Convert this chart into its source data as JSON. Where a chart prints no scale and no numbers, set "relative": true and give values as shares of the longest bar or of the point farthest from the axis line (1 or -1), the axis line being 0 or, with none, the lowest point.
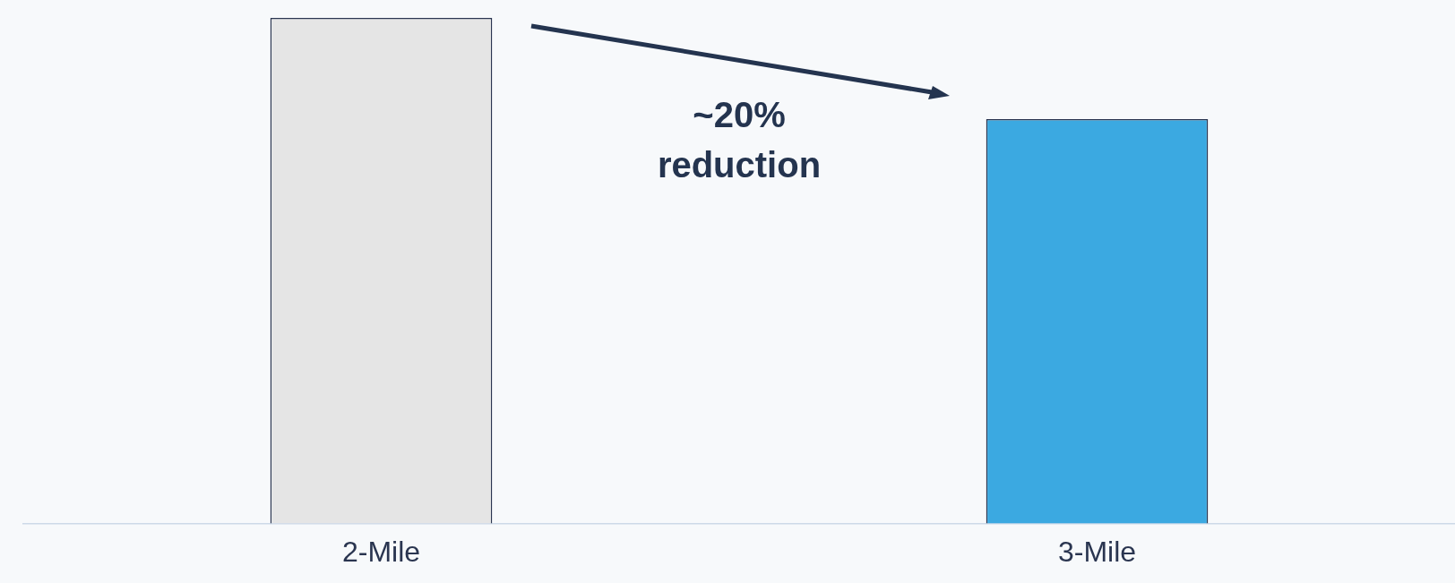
{
  "chart_data": {
    "type": "bar",
    "relative": true,
    "categories": [
      "2-Mile",
      "3-Mile"
    ],
    "values": [
      1,
      0.8
    ],
    "colors": [
      "#e5e5e5",
      "#3ba9e1"
    ],
    "grid": false,
    "legend": false,
    "tick_labels": "x",
    "annotations": [
      "~20% reduction"
    ]
  }
}
